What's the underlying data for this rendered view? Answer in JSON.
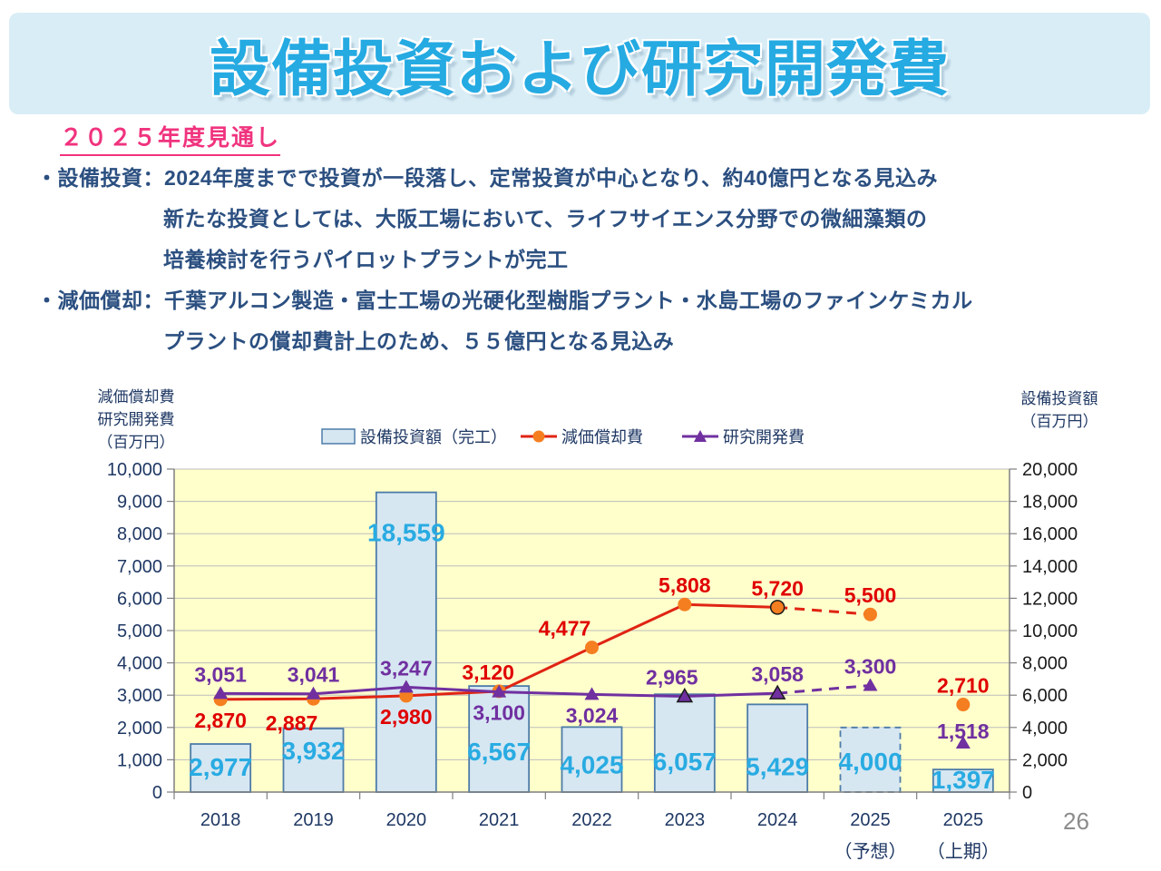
{
  "title": "設備投資および研究開発費",
  "section_heading": "２０２５年度見通し",
  "bullets": [
    {
      "indent": false,
      "text": "・設備投資：2024年度までで投資が一段落し、定常投資が中心となり、約40億円となる見込み"
    },
    {
      "indent": true,
      "text": "新たな投資としては、大阪工場において、ライフサイエンス分野での微細藻類の"
    },
    {
      "indent": true,
      "text": "培養検討を行うパイロットプラントが完工"
    },
    {
      "indent": false,
      "text": "・減価償却：千葉アルコン製造・富士工場の光硬化型樹脂プラント・水島工場のファインケミカル"
    },
    {
      "indent": true,
      "text": "プラントの償却費計上のため、５５億円となる見込み"
    }
  ],
  "page": {
    "number": "26"
  },
  "chart_data": {
    "type": "bar",
    "subtype": "bar-line-combo",
    "plot_bg": "#ffffcc",
    "grid": true,
    "left_axis": {
      "title_lines": [
        "減価償却費",
        "研究開発費",
        "（百万円）"
      ],
      "min": 0,
      "max": 10000,
      "step": 1000
    },
    "right_axis": {
      "title_lines": [
        "設備投資額",
        "（百万円）"
      ],
      "min": 0,
      "max": 20000,
      "step": 2000
    },
    "categories": [
      [
        "2018"
      ],
      [
        "2019"
      ],
      [
        "2020"
      ],
      [
        "2021"
      ],
      [
        "2022"
      ],
      [
        "2023"
      ],
      [
        "2024"
      ],
      [
        "2025",
        "（予想）"
      ],
      [
        "2025",
        "（上期）"
      ]
    ],
    "series": [
      {
        "name": "設備投資額（完工）",
        "type": "bar",
        "axis": "right",
        "values": [
          2977,
          3932,
          18559,
          6567,
          4025,
          6057,
          5429,
          4000,
          1397
        ],
        "dashed_indices": [
          7
        ],
        "label_center_dy": [
          26,
          25,
          45,
          73,
          42,
          75,
          69,
          38,
          12
        ]
      },
      {
        "name": "減価償却費",
        "type": "line",
        "axis": "left",
        "marker": "circle",
        "values": [
          2870,
          2887,
          2980,
          3120,
          4477,
          5808,
          5720,
          5500,
          2710
        ],
        "label_side": [
          "below",
          "below",
          "below",
          "above",
          "above",
          "above",
          "above",
          "above",
          "above"
        ],
        "label_adjust": {
          "1": [
            -24,
            4
          ],
          "3": [
            -12,
            0
          ],
          "4": [
            -30,
            0
          ]
        },
        "solid_until": 6,
        "dashed_to": 7,
        "outlined_markers": [
          6
        ]
      },
      {
        "name": "研究開発費",
        "type": "line",
        "axis": "left",
        "marker": "triangle",
        "values": [
          3051,
          3041,
          3247,
          3100,
          3024,
          2965,
          3058,
          3300,
          1518
        ],
        "label_side": [
          "above",
          "above",
          "above",
          "below",
          "below",
          "above",
          "above",
          "above",
          "above"
        ],
        "label_adjust": {
          "5": [
            -14,
            0
          ],
          "8": [
            0,
            8
          ]
        },
        "solid_until": 6,
        "dashed_to": 7,
        "outlined_markers": [
          5,
          6
        ]
      }
    ],
    "colors": {
      "bar_fill": "#d6e7f2",
      "bar_border": "#4e7ca8",
      "bar_label": "#29abe2",
      "depreciation_line": "#e02413",
      "depreciation_marker": "#f57e20",
      "depreciation_label": "#e00000",
      "rnd_line": "#7030a0",
      "rnd_marker": "#7030a0",
      "rnd_label": "#7030a0",
      "gridline": "#bdbdbd",
      "axis_line": "#7f7f7f",
      "left_tick_label": "#1f3864",
      "right_tick_label": "#1a1a1a",
      "category_label": "#1f3864",
      "accent_title": "#25aae2",
      "banner_bg": "#d9edf6",
      "heading_pink": "#f0337e",
      "body_text": "#2b4f80",
      "page_number": "#8c8c8c"
    }
  }
}
